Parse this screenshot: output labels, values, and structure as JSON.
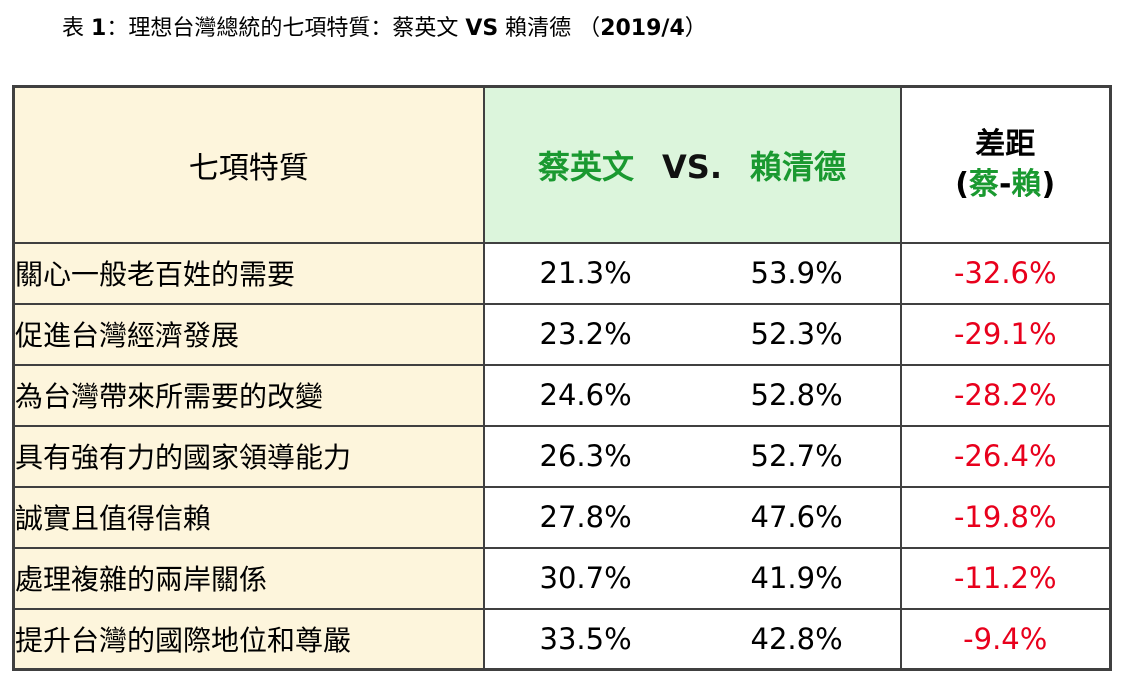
{
  "title": {
    "prefix": "表 ",
    "num": "1",
    "mid": "：理想台灣總統的七項特質：蔡英文 ",
    "vs": "VS",
    "name2": " 賴清德 （",
    "date": "2019/4",
    "close": "）"
  },
  "headers": {
    "trait": "七項特質",
    "tsai": "蔡英文",
    "vs": "VS.",
    "lai": "賴清德",
    "gap_line1": "差距",
    "gap_open": "(",
    "gap_tsai": "蔡",
    "gap_dash": "-",
    "gap_lai": "賴",
    "gap_close": ")"
  },
  "rows": [
    {
      "trait": "關心一般老百姓的需要",
      "tsai": "21.3%",
      "lai": "53.9%",
      "gap": "-32.6%"
    },
    {
      "trait": "促進台灣經濟發展",
      "tsai": "23.2%",
      "lai": "52.3%",
      "gap": "-29.1%"
    },
    {
      "trait": "為台灣帶來所需要的改變",
      "tsai": "24.6%",
      "lai": "52.8%",
      "gap": "-28.2%"
    },
    {
      "trait": "具有強有力的國家領導能力",
      "tsai": "26.3%",
      "lai": "52.7%",
      "gap": "-26.4%"
    },
    {
      "trait": "誠實且值得信賴",
      "tsai": "27.8%",
      "lai": "47.6%",
      "gap": "-19.8%"
    },
    {
      "trait": "處理複雜的兩岸關係",
      "tsai": "30.7%",
      "lai": "41.9%",
      "gap": "-11.2%"
    },
    {
      "trait": "提升台灣的國際地位和尊嚴",
      "tsai": "33.5%",
      "lai": "42.8%",
      "gap": "-9.4%"
    }
  ],
  "colors": {
    "green": "#1a9930",
    "red": "#e8001c",
    "trait_bg": "#fdf5dc",
    "header_bg": "#dcf5dc",
    "border": "#404040"
  },
  "chart_data": {
    "type": "table",
    "columns": [
      "七項特質",
      "蔡英文",
      "賴清德",
      "差距"
    ],
    "categories": [
      "關心一般老百姓的需要",
      "促進台灣經濟發展",
      "為台灣帶來所需要的改變",
      "具有強有力的國家領導能力",
      "誠實且值得信賴",
      "處理複雜的兩岸關係",
      "提升台灣的國際地位和尊嚴"
    ],
    "series": [
      {
        "name": "蔡英文",
        "values": [
          21.3,
          23.2,
          24.6,
          26.3,
          27.8,
          30.7,
          33.5
        ]
      },
      {
        "name": "賴清德",
        "values": [
          53.9,
          52.3,
          52.8,
          52.7,
          47.6,
          41.9,
          42.8
        ]
      },
      {
        "name": "差距",
        "values": [
          -32.6,
          -29.1,
          -28.2,
          -26.4,
          -19.8,
          -11.2,
          -9.4
        ]
      }
    ]
  }
}
